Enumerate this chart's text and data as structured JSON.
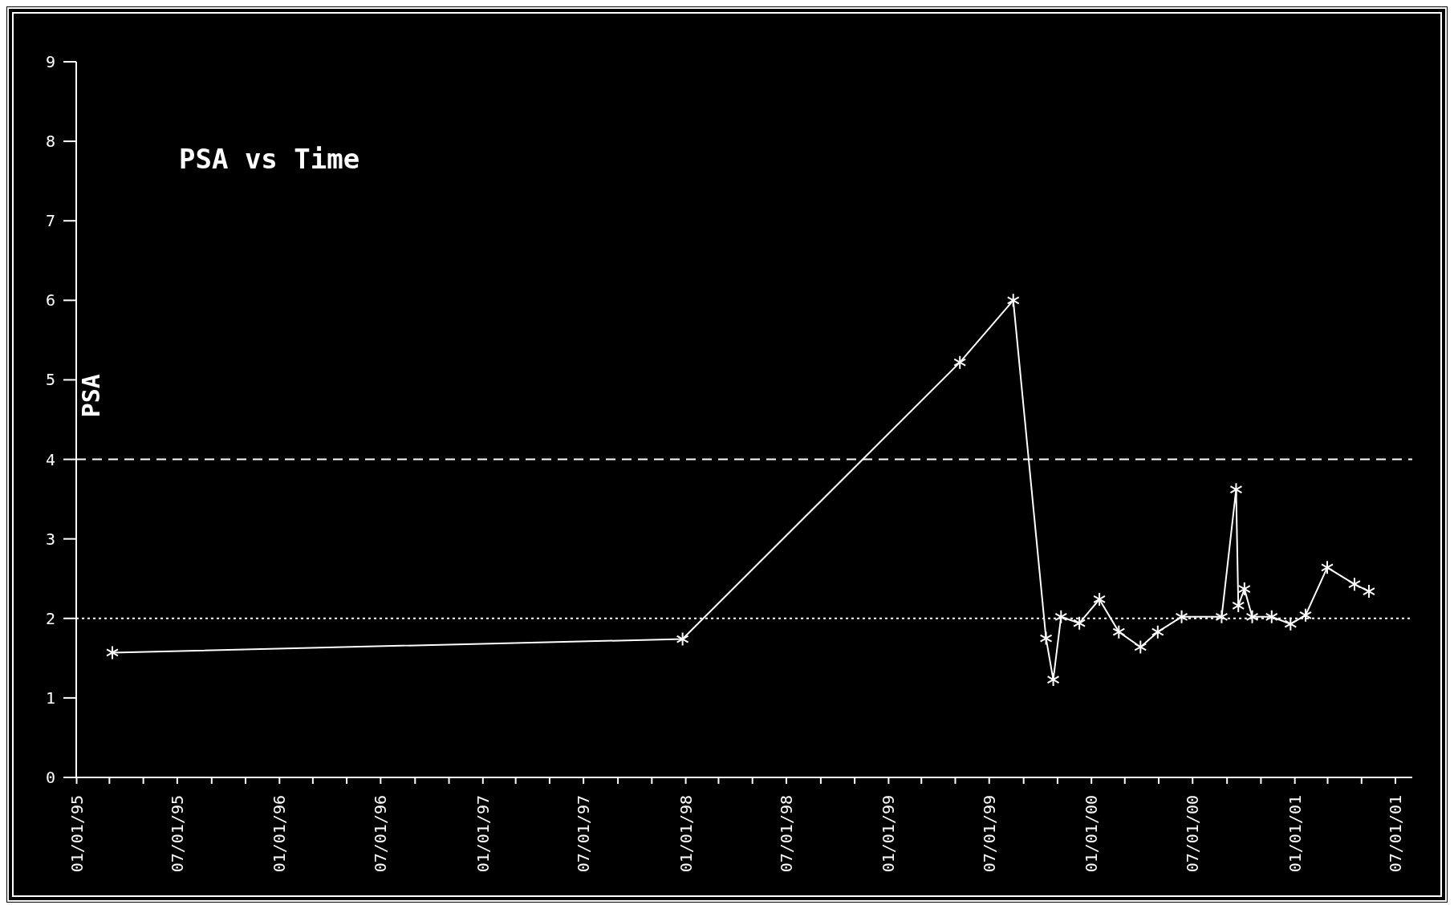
{
  "chart_data": {
    "type": "line",
    "title": "PSA vs Time",
    "ylabel": "PSA",
    "x": [
      "1995-03-07",
      "1997-12-27",
      "1999-05-10",
      "1999-08-14",
      "1999-10-12",
      "1999-10-25",
      "1999-11-08",
      "1999-12-11",
      "2000-01-16",
      "2000-02-20",
      "2000-03-30",
      "2000-04-30",
      "2000-06-12",
      "2000-08-23",
      "2000-09-18",
      "2000-09-22",
      "2000-10-03",
      "2000-10-17",
      "2000-11-21",
      "2000-12-25",
      "2001-01-21",
      "2001-03-01",
      "2001-04-19",
      "2001-05-15"
    ],
    "series": [
      {
        "color": "#ffffff",
        "values": [
          1.57,
          1.74,
          5.22,
          6.0,
          1.75,
          1.23,
          2.02,
          1.94,
          2.24,
          1.83,
          1.64,
          1.83,
          2.02,
          2.02,
          3.62,
          2.16,
          2.37,
          2.02,
          2.02,
          1.93,
          2.04,
          2.64,
          2.43,
          2.34
        ]
      }
    ],
    "marker": "cross",
    "line_style": "solid",
    "grid": false,
    "xlim": [
      "1995-01-01",
      "2001-08-01"
    ],
    "xticks": [
      {
        "value": "1995-01-01",
        "label": "01/01/95"
      },
      {
        "value": "1995-03-01",
        "label": null
      },
      {
        "value": "1995-05-01",
        "label": null
      },
      {
        "value": "1995-07-01",
        "label": "07/01/95"
      },
      {
        "value": "1995-09-01",
        "label": null
      },
      {
        "value": "1995-11-01",
        "label": null
      },
      {
        "value": "1996-01-01",
        "label": "01/01/96"
      },
      {
        "value": "1996-03-01",
        "label": null
      },
      {
        "value": "1996-05-01",
        "label": null
      },
      {
        "value": "1996-07-01",
        "label": "07/01/96"
      },
      {
        "value": "1996-09-01",
        "label": null
      },
      {
        "value": "1996-11-01",
        "label": null
      },
      {
        "value": "1997-01-01",
        "label": "01/01/97"
      },
      {
        "value": "1997-03-01",
        "label": null
      },
      {
        "value": "1997-05-01",
        "label": null
      },
      {
        "value": "1997-07-01",
        "label": "07/01/97"
      },
      {
        "value": "1997-09-01",
        "label": null
      },
      {
        "value": "1997-11-01",
        "label": null
      },
      {
        "value": "1998-01-01",
        "label": "01/01/98"
      },
      {
        "value": "1998-03-01",
        "label": null
      },
      {
        "value": "1998-05-01",
        "label": null
      },
      {
        "value": "1998-07-01",
        "label": "07/01/98"
      },
      {
        "value": "1998-09-01",
        "label": null
      },
      {
        "value": "1998-11-01",
        "label": null
      },
      {
        "value": "1999-01-01",
        "label": "01/01/99"
      },
      {
        "value": "1999-03-01",
        "label": null
      },
      {
        "value": "1999-05-01",
        "label": null
      },
      {
        "value": "1999-07-01",
        "label": "07/01/99"
      },
      {
        "value": "1999-09-01",
        "label": null
      },
      {
        "value": "1999-11-01",
        "label": null
      },
      {
        "value": "2000-01-01",
        "label": "01/01/00"
      },
      {
        "value": "2000-03-01",
        "label": null
      },
      {
        "value": "2000-05-01",
        "label": null
      },
      {
        "value": "2000-07-01",
        "label": "07/01/00"
      },
      {
        "value": "2000-09-01",
        "label": null
      },
      {
        "value": "2000-11-01",
        "label": null
      },
      {
        "value": "2001-01-01",
        "label": "01/01/01"
      },
      {
        "value": "2001-03-01",
        "label": null
      },
      {
        "value": "2001-05-01",
        "label": null
      },
      {
        "value": "2001-07-01",
        "label": "07/01/01"
      }
    ],
    "ylim": [
      0,
      9
    ],
    "yticks": [
      0,
      1,
      2,
      3,
      4,
      5,
      6,
      7,
      8,
      9
    ],
    "ref_lines": [
      {
        "axis": "y",
        "value": 4,
        "line_style": "dashed",
        "color": "#ffffff"
      },
      {
        "axis": "y",
        "value": 2,
        "line_style": "dotted",
        "color": "#ffffff"
      }
    ]
  }
}
